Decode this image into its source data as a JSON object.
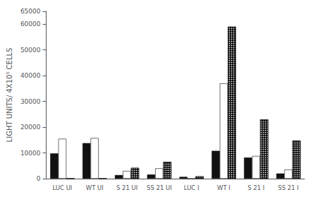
{
  "chart_data": {
    "type": "bar",
    "ylabel": "LIGHT UNITS/ 4X10⁵ CELLS",
    "categories": [
      "LUC UI",
      "WT UI",
      "S 21 UI",
      "SS 21 UI",
      "LUC I",
      "WT I",
      "S 21 I",
      "SS 21 I"
    ],
    "series": [
      {
        "color": "#111111",
        "values": [
          9800,
          13800,
          1400,
          1600,
          700,
          10800,
          8200,
          2000
        ]
      },
      {
        "color": "#ffffff",
        "values": [
          15500,
          15800,
          3000,
          4000,
          0,
          37000,
          8800,
          3500
        ]
      },
      {
        "color": "#111111",
        "values": [
          0,
          0,
          4200,
          6500,
          900,
          59000,
          23000,
          14800
        ],
        "marker": "stipple"
      }
    ],
    "ylim": [
      0,
      65000
    ],
    "yticks": [
      0,
      10000,
      20000,
      30000,
      40000,
      50000,
      60000
    ],
    "grid": false
  }
}
